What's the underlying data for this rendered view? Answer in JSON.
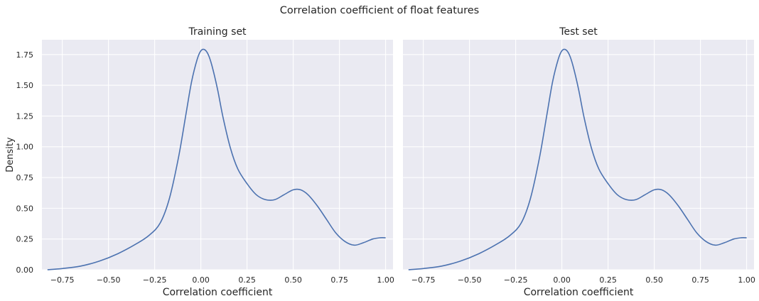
{
  "suptitle": "Correlation coefficient of float features",
  "colors": {
    "panel_bg": "#eaeaf2",
    "grid": "#ffffff",
    "line": "#4c72b0",
    "text": "#262626"
  },
  "chart_data": [
    {
      "type": "line",
      "title": "Training set",
      "xlabel": "Correlation coefficient",
      "ylabel": "Density",
      "xlim": [
        -0.86,
        1.04
      ],
      "ylim": [
        0,
        1.87
      ],
      "grid": true,
      "xticks": [
        -0.75,
        -0.5,
        -0.25,
        0.0,
        0.25,
        0.5,
        0.75,
        1.0
      ],
      "xtick_labels": [
        "−0.75",
        "−0.50",
        "−0.25",
        "0.00",
        "0.25",
        "0.50",
        "0.75",
        "1.00"
      ],
      "yticks": [
        0.0,
        0.25,
        0.5,
        0.75,
        1.0,
        1.25,
        1.5,
        1.75
      ],
      "ytick_labels": [
        "0.00",
        "0.25",
        "0.50",
        "0.75",
        "1.00",
        "1.25",
        "1.50",
        "1.75"
      ],
      "series": [
        {
          "x": [
            -0.83,
            -0.75,
            -0.65,
            -0.55,
            -0.45,
            -0.35,
            -0.28,
            -0.22,
            -0.17,
            -0.12,
            -0.08,
            -0.05,
            -0.02,
            0.0,
            0.02,
            0.04,
            0.06,
            0.09,
            0.12,
            0.16,
            0.2,
            0.25,
            0.3,
            0.35,
            0.4,
            0.45,
            0.5,
            0.54,
            0.58,
            0.63,
            0.68,
            0.73,
            0.78,
            0.83,
            0.88,
            0.93,
            0.97,
            1.0
          ],
          "y": [
            0.0,
            0.01,
            0.03,
            0.07,
            0.13,
            0.21,
            0.28,
            0.38,
            0.58,
            0.92,
            1.27,
            1.53,
            1.71,
            1.78,
            1.79,
            1.75,
            1.66,
            1.47,
            1.24,
            0.99,
            0.82,
            0.7,
            0.61,
            0.57,
            0.57,
            0.61,
            0.65,
            0.65,
            0.61,
            0.52,
            0.41,
            0.3,
            0.23,
            0.2,
            0.22,
            0.25,
            0.26,
            0.26
          ]
        }
      ]
    },
    {
      "type": "line",
      "title": "Test set",
      "xlabel": "Correlation coefficient",
      "ylabel": "",
      "xlim": [
        -0.86,
        1.04
      ],
      "ylim": [
        0,
        1.87
      ],
      "grid": true,
      "xticks": [
        -0.75,
        -0.5,
        -0.25,
        0.0,
        0.25,
        0.5,
        0.75,
        1.0
      ],
      "xtick_labels": [
        "−0.75",
        "−0.50",
        "−0.25",
        "0.00",
        "0.25",
        "0.50",
        "0.75",
        "1.00"
      ],
      "yticks": [
        0.0,
        0.25,
        0.5,
        0.75,
        1.0,
        1.25,
        1.5,
        1.75
      ],
      "ytick_labels": [],
      "series": [
        {
          "x": [
            -0.83,
            -0.75,
            -0.65,
            -0.55,
            -0.45,
            -0.35,
            -0.28,
            -0.22,
            -0.17,
            -0.12,
            -0.08,
            -0.05,
            -0.02,
            0.0,
            0.02,
            0.04,
            0.06,
            0.09,
            0.12,
            0.16,
            0.2,
            0.25,
            0.3,
            0.35,
            0.4,
            0.45,
            0.5,
            0.54,
            0.58,
            0.63,
            0.68,
            0.73,
            0.78,
            0.83,
            0.88,
            0.93,
            0.97,
            1.0
          ],
          "y": [
            0.0,
            0.01,
            0.03,
            0.07,
            0.13,
            0.21,
            0.28,
            0.38,
            0.58,
            0.92,
            1.27,
            1.53,
            1.71,
            1.78,
            1.79,
            1.75,
            1.66,
            1.47,
            1.24,
            0.99,
            0.82,
            0.7,
            0.61,
            0.57,
            0.57,
            0.61,
            0.65,
            0.65,
            0.61,
            0.52,
            0.41,
            0.3,
            0.23,
            0.2,
            0.22,
            0.25,
            0.26,
            0.26
          ]
        }
      ]
    }
  ]
}
